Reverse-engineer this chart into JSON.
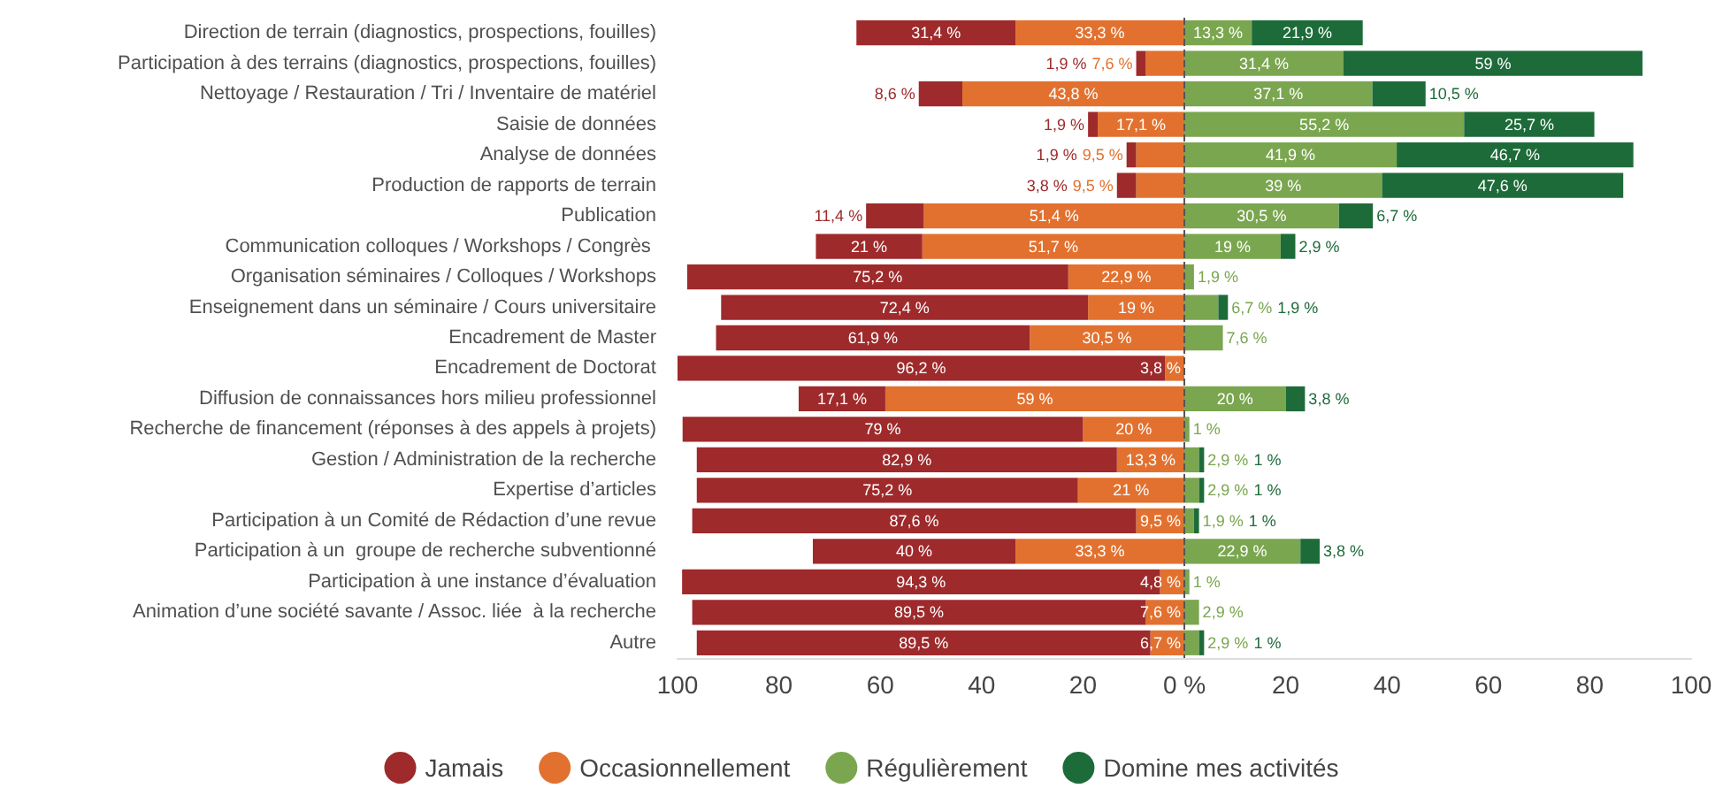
{
  "chart_data": {
    "type": "bar",
    "orientation": "horizontal",
    "legend": "bottom",
    "grid": false,
    "categories": [
      "Direction de terrain (diagnostics, prospections, fouilles)",
      "Participation à des terrains (diagnostics, prospections, fouilles)",
      "Nettoyage / Restauration / Tri / Inventaire de matériel",
      "Saisie de données",
      "Analyse de données",
      "Production de rapports de terrain",
      "Publication",
      "Communication colloques / Workshops / Congrès ",
      "Organisation séminaires / Colloques / Workshops",
      "Enseignement dans un séminaire / Cours universitaire",
      "Encadrement de Master",
      "Encadrement de Doctorat",
      "Diffusion de connaissances hors milieu professionnel",
      "Recherche de financement (réponses à des appels à projets)",
      "Gestion / Administration de la recherche",
      "Expertise d’articles",
      "Participation à un Comité de Rédaction d’une revue",
      "Participation à un  groupe de recherche subventionné",
      "Participation à une instance d’évaluation",
      "Animation d’une société savante / Assoc. liée  à la recherche",
      "Autre"
    ],
    "series": [
      {
        "name": "Occasionnellement",
        "color": "#e2712f",
        "values": [
          33.3,
          7.6,
          43.8,
          17.1,
          9.5,
          9.5,
          51.4,
          51.7,
          22.9,
          19,
          30.5,
          3.8,
          59,
          20,
          13.3,
          21,
          9.5,
          33.3,
          4.8,
          7.6,
          6.7
        ],
        "base": [
          -33.3,
          -7.6,
          -43.8,
          -17.1,
          -9.5,
          -9.5,
          -51.4,
          -51.7,
          -22.9,
          -19,
          -30.5,
          -3.8,
          -59,
          -20,
          -13.3,
          -21,
          -9.5,
          -33.3,
          -4.8,
          -7.6,
          -6.7
        ],
        "value_labels": [
          "33,3 %",
          "7,6 %",
          "43,8 %",
          "17,1 %",
          "9,5 %",
          "9,5 %",
          "51,4 %",
          "51,7 %",
          "22,9 %",
          "19 %",
          "30,5 %",
          "3,8 %",
          "59 %",
          "20 %",
          "13,3 %",
          "21 %",
          "9,5 %",
          "33,3 %",
          "4,8 %",
          "7,6 %",
          "6,7 %"
        ]
      },
      {
        "name": "Jamais",
        "color": "#9e2a2b",
        "values": [
          31.4,
          1.9,
          8.6,
          1.9,
          1.9,
          3.8,
          11.4,
          21,
          75.2,
          72.4,
          61.9,
          96.2,
          17.1,
          79,
          82.9,
          75.2,
          87.6,
          40,
          94.3,
          89.5,
          89.5
        ],
        "base": [
          -64.7,
          -9.5,
          -52.4,
          -19,
          -11.4,
          -13.3,
          -62.8,
          -72.7,
          -98.1,
          -91.4,
          -92.4,
          -100,
          -76.1,
          -99,
          -96.2,
          -96.2,
          -97.1,
          -73.3,
          -99.1,
          -97.1,
          -96.2
        ],
        "value_labels": [
          "31,4 %",
          "1,9 %",
          "8,6 %",
          "1,9 %",
          "1,9 %",
          "3,8 %",
          "11,4 %",
          "21 %",
          "75,2 %",
          "72,4 %",
          "61,9 %",
          "96,2 %",
          "17,1 %",
          "79 %",
          "82,9 %",
          "75,2 %",
          "87,6 %",
          "40 %",
          "94,3 %",
          "89,5 %",
          "89,5 %"
        ]
      },
      {
        "name": "Régulièrement",
        "color": "#7aa64f",
        "values": [
          13.3,
          31.4,
          37.1,
          55.2,
          41.9,
          39,
          30.5,
          19,
          1.9,
          6.7,
          7.6,
          0,
          20,
          1,
          2.9,
          2.9,
          1.9,
          22.9,
          1,
          2.9,
          2.9
        ],
        "base": [
          0,
          0,
          0,
          0,
          0,
          0,
          0,
          0,
          0,
          0,
          0,
          null,
          0,
          0,
          0,
          0,
          0,
          0,
          0,
          0,
          0
        ],
        "value_labels": [
          "13,3 %",
          "31,4 %",
          "37,1 %",
          "55,2 %",
          "41,9 %",
          "39 %",
          "30,5 %",
          "19 %",
          "1,9 %",
          "6,7 %",
          "7,6 %",
          null,
          "20 %",
          "1 %",
          "2,9 %",
          "2,9 %",
          "1,9 %",
          "22,9 %",
          "1 %",
          "2,9 %",
          "2,9 %"
        ]
      },
      {
        "name": "Domine mes activités",
        "color": "#1e6b3a",
        "values": [
          21.9,
          59,
          10.5,
          25.7,
          46.7,
          47.6,
          6.7,
          2.9,
          0,
          1.9,
          0,
          0,
          3.8,
          0,
          1,
          1,
          1,
          3.8,
          0,
          0,
          1
        ],
        "base": [
          13.3,
          31.4,
          37.1,
          55.2,
          41.9,
          39,
          30.5,
          19,
          null,
          6.7,
          null,
          null,
          20,
          null,
          2.9,
          2.9,
          1.9,
          22.9,
          null,
          null,
          2.9
        ],
        "value_labels": [
          "21,9 %",
          "59 %",
          "10,5 %",
          "25,7 %",
          "46,7 %",
          "47,6 %",
          "6,7 %",
          "2,9 %",
          null,
          "1,9 %",
          null,
          null,
          "3,8 %",
          null,
          "1 %",
          "1 %",
          "1 %",
          "3,8 %",
          null,
          null,
          "1 %"
        ]
      }
    ],
    "ref_lines": [
      {
        "axis": "x",
        "value": 0,
        "color": "#555555",
        "line_style": "dashed"
      }
    ],
    "xlim": [
      -100,
      100
    ],
    "xticks": [
      {
        "value": -100,
        "label": "100"
      },
      {
        "value": -80,
        "label": "80"
      },
      {
        "value": -60,
        "label": "60"
      },
      {
        "value": -40,
        "label": "40"
      },
      {
        "value": -20,
        "label": "20"
      },
      {
        "value": 0,
        "label": "0 %"
      },
      20,
      40,
      60,
      80,
      100
    ]
  }
}
